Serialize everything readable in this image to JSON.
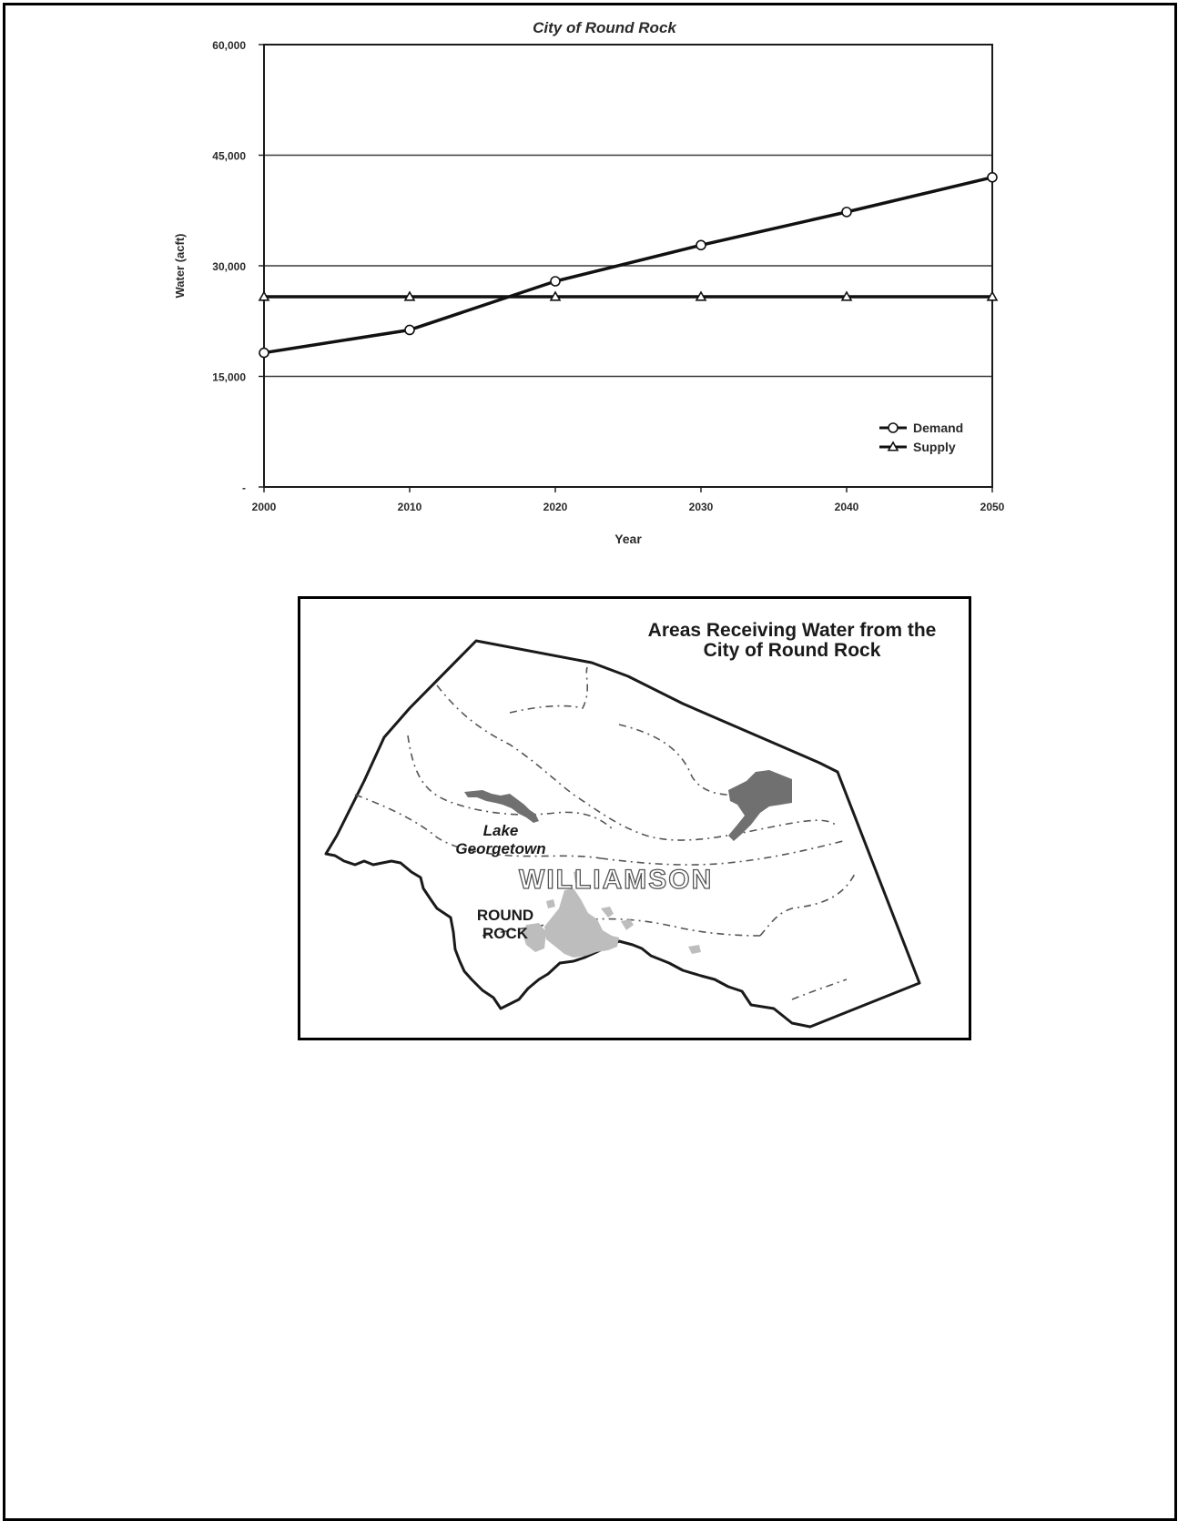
{
  "chart_data": {
    "type": "line",
    "title": "City of Round Rock",
    "xlabel": "Year",
    "ylabel": "Water (acft)",
    "x": [
      2000,
      2010,
      2020,
      2030,
      2040,
      2050
    ],
    "x_tick_labels": [
      "2000",
      "2010",
      "2020",
      "2030",
      "2040",
      "2050"
    ],
    "ylim": [
      0,
      60000
    ],
    "y_ticks": [
      0,
      15000,
      30000,
      45000,
      60000
    ],
    "y_tick_labels": [
      "-",
      "15,000",
      "30,000",
      "45,000",
      "60,000"
    ],
    "grid": "horizontal",
    "legend_position": "bottom-right",
    "series": [
      {
        "name": "Demand",
        "marker": "circle",
        "values": [
          18200,
          21300,
          27900,
          32800,
          37300,
          42000
        ]
      },
      {
        "name": "Supply",
        "marker": "triangle",
        "values": [
          25800,
          25800,
          25800,
          25800,
          25800,
          25800
        ]
      }
    ]
  },
  "map": {
    "title": "Areas Receiving Water from the City of Round Rock",
    "county_label": "WILLIAMSON",
    "lake_label": "Lake Georgetown",
    "city_label": "ROUND ROCK",
    "colors": {
      "city_area": "#bdbdbd",
      "lake": "#707070",
      "boundary": "#1a1a1a"
    }
  }
}
